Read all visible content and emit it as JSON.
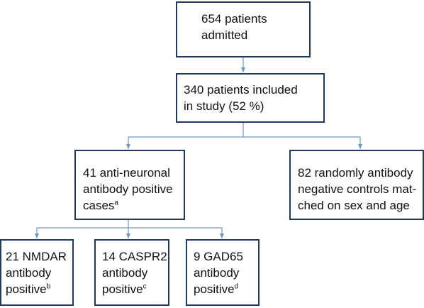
{
  "flowchart": {
    "admitted": {
      "text": "654 patients\nadmitted"
    },
    "included": {
      "text": "340 patients included\nin study (52 %)"
    },
    "positive_cases": {
      "text": "41 anti-neuronal\nantibody positive\ncases",
      "sup": "a"
    },
    "controls": {
      "text": "82 randomly antibody\nnegative controls mat-\nched on sex and age"
    },
    "nmdar": {
      "text": "21 NMDAR\nantibody\npositive",
      "sup": "b"
    },
    "caspr2": {
      "text": "14 CASPR2\nantibody\npositive",
      "sup": "c"
    },
    "gad65": {
      "text": "9 GAD65\nantibody\npositive",
      "sup": "d"
    }
  },
  "colors": {
    "box_border": "#1f3a5f",
    "connector": "#6f97c4",
    "text": "#111111"
  }
}
